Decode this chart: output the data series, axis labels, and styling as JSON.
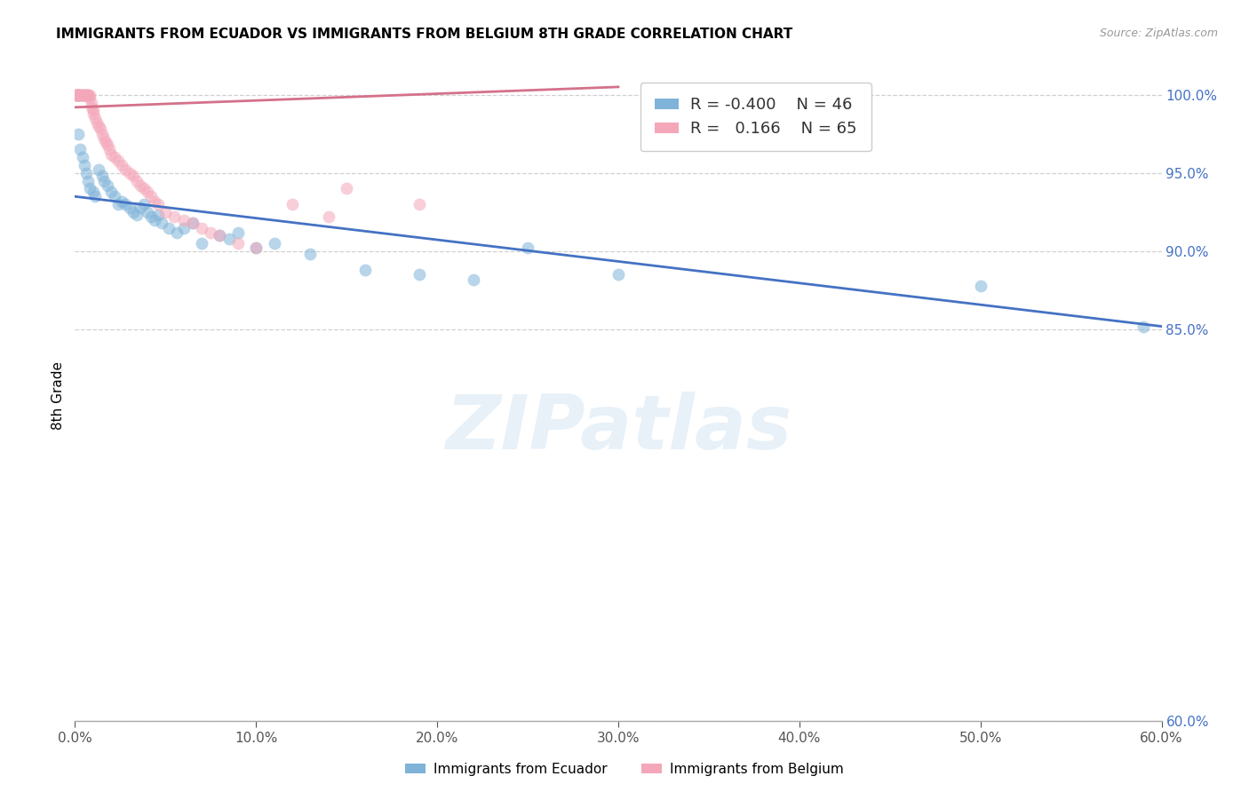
{
  "title": "IMMIGRANTS FROM ECUADOR VS IMMIGRANTS FROM BELGIUM 8TH GRADE CORRELATION CHART",
  "source": "Source: ZipAtlas.com",
  "ylabel": "8th Grade",
  "watermark": "ZIPatlas",
  "legend_ecuador_label": "Immigrants from Ecuador",
  "legend_belgium_label": "Immigrants from Belgium",
  "legend_ecuador_R": -0.4,
  "legend_ecuador_N": 46,
  "legend_belgium_R": 0.166,
  "legend_belgium_N": 65,
  "ecuador_x": [
    0.002,
    0.003,
    0.004,
    0.005,
    0.006,
    0.007,
    0.008,
    0.01,
    0.011,
    0.013,
    0.015,
    0.016,
    0.018,
    0.02,
    0.022,
    0.024,
    0.026,
    0.028,
    0.03,
    0.032,
    0.034,
    0.036,
    0.038,
    0.04,
    0.042,
    0.044,
    0.046,
    0.048,
    0.052,
    0.056,
    0.06,
    0.065,
    0.07,
    0.08,
    0.085,
    0.09,
    0.1,
    0.11,
    0.13,
    0.16,
    0.19,
    0.22,
    0.25,
    0.3,
    0.5,
    0.59
  ],
  "ecuador_y": [
    97.5,
    96.5,
    96.0,
    95.5,
    95.0,
    94.5,
    94.0,
    93.8,
    93.5,
    95.2,
    94.8,
    94.5,
    94.2,
    93.8,
    93.5,
    93.0,
    93.2,
    93.0,
    92.8,
    92.5,
    92.3,
    92.8,
    93.0,
    92.5,
    92.2,
    92.0,
    92.3,
    91.8,
    91.5,
    91.2,
    91.5,
    91.8,
    90.5,
    91.0,
    90.8,
    91.2,
    90.2,
    90.5,
    89.8,
    88.8,
    88.5,
    88.2,
    90.2,
    88.5,
    87.8,
    85.2
  ],
  "belgium_x": [
    0.001,
    0.001,
    0.001,
    0.001,
    0.001,
    0.002,
    0.002,
    0.002,
    0.002,
    0.002,
    0.003,
    0.003,
    0.003,
    0.004,
    0.004,
    0.004,
    0.005,
    0.005,
    0.005,
    0.006,
    0.006,
    0.007,
    0.007,
    0.008,
    0.008,
    0.009,
    0.009,
    0.01,
    0.01,
    0.011,
    0.012,
    0.013,
    0.014,
    0.015,
    0.016,
    0.017,
    0.018,
    0.019,
    0.02,
    0.022,
    0.024,
    0.026,
    0.028,
    0.03,
    0.032,
    0.034,
    0.036,
    0.038,
    0.04,
    0.042,
    0.044,
    0.046,
    0.05,
    0.055,
    0.06,
    0.065,
    0.07,
    0.075,
    0.08,
    0.09,
    0.1,
    0.12,
    0.15,
    0.19,
    0.14
  ],
  "belgium_y": [
    100.0,
    100.0,
    100.0,
    100.0,
    100.0,
    100.0,
    100.0,
    100.0,
    100.0,
    100.0,
    100.0,
    100.0,
    100.0,
    100.0,
    100.0,
    100.0,
    100.0,
    100.0,
    100.0,
    100.0,
    100.0,
    100.0,
    100.0,
    100.0,
    99.8,
    99.5,
    99.2,
    99.0,
    98.8,
    98.5,
    98.2,
    98.0,
    97.8,
    97.5,
    97.2,
    97.0,
    96.8,
    96.5,
    96.2,
    96.0,
    95.8,
    95.5,
    95.2,
    95.0,
    94.8,
    94.5,
    94.2,
    94.0,
    93.8,
    93.5,
    93.2,
    93.0,
    92.5,
    92.2,
    92.0,
    91.8,
    91.5,
    91.2,
    91.0,
    90.5,
    90.2,
    93.0,
    94.0,
    93.0,
    92.2
  ],
  "xlim": [
    0.0,
    0.6
  ],
  "ylim": [
    60.0,
    101.5
  ],
  "yticks": [
    60.0,
    85.0,
    90.0,
    95.0,
    100.0
  ],
  "xticks": [
    0.0,
    0.1,
    0.2,
    0.3,
    0.4,
    0.5,
    0.6
  ],
  "ecuador_line_x": [
    0.0,
    0.6
  ],
  "ecuador_line_y": [
    93.5,
    85.2
  ],
  "belgium_line_x": [
    0.0,
    0.3
  ],
  "belgium_line_y": [
    99.2,
    100.5
  ],
  "ecuador_dot_color": "#7fb3d8",
  "belgium_dot_color": "#f4a7b9",
  "ecuador_line_color": "#4472c4",
  "belgium_line_color": "#d4718a",
  "grid_color": "#d0d0d0",
  "title_fontsize": 11,
  "axis_color_y": "#4472c4",
  "axis_color_x": "#555555",
  "background_color": "#ffffff"
}
